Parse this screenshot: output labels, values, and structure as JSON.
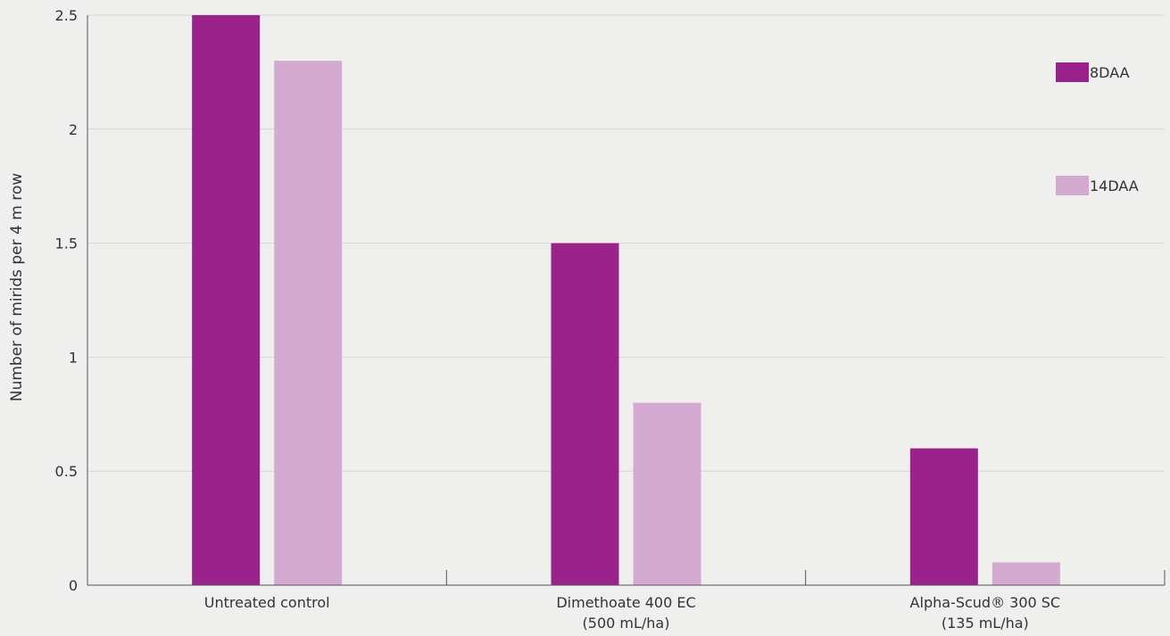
{
  "chart_data": {
    "type": "bar",
    "title": "",
    "xlabel": "",
    "ylabel": "Number of mirids per 4 m row",
    "ylim": [
      0,
      2.5
    ],
    "yticks": [
      0,
      0.5,
      1,
      1.5,
      2,
      2.5
    ],
    "ytick_labels": [
      "0",
      "0.5",
      "1",
      "1.5",
      "2",
      "2.5"
    ],
    "grid": true,
    "legend_position": "top-right",
    "categories": [
      [
        "Untreated control"
      ],
      [
        "Dimethoate 400 EC",
        "(500 mL/ha)"
      ],
      [
        "Alpha-Scud® 300 SC",
        "(135 mL/ha)"
      ]
    ],
    "series": [
      {
        "name": "8DAA",
        "color": "#9a228b",
        "values": [
          2.5,
          1.5,
          0.6
        ]
      },
      {
        "name": "14DAA",
        "color": "#d4aad1",
        "values": [
          2.3,
          0.8,
          0.1
        ]
      }
    ]
  }
}
